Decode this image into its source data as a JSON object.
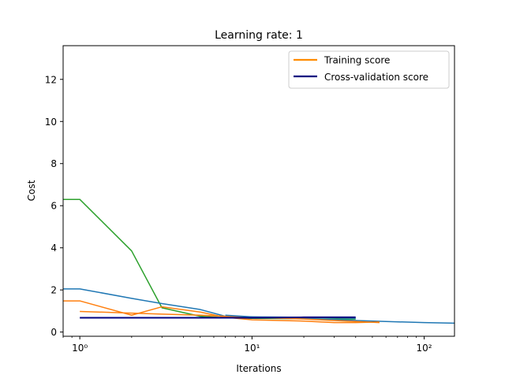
{
  "chart_data": {
    "type": "line",
    "title": "Learning rate: 1",
    "xlabel": "Iterations",
    "ylabel": "Cost",
    "xscale": "log",
    "xlim": [
      0.8,
      150
    ],
    "ylim": [
      -0.2,
      13.6
    ],
    "grid": false,
    "legend_position": "top-right",
    "x_ticks": [
      {
        "value": 1,
        "label": "10⁰"
      },
      {
        "value": 10,
        "label": "10¹"
      },
      {
        "value": 100,
        "label": "10²"
      }
    ],
    "y_ticks": [
      {
        "value": 0,
        "label": "0"
      },
      {
        "value": 2,
        "label": "2"
      },
      {
        "value": 4,
        "label": "4"
      },
      {
        "value": 6,
        "label": "6"
      },
      {
        "value": 8,
        "label": "8"
      },
      {
        "value": 10,
        "label": "10"
      },
      {
        "value": 12,
        "label": "12"
      }
    ],
    "legend": [
      {
        "label": "Training score",
        "color": "#ff8c00"
      },
      {
        "label": "Cross-validation score",
        "color": "#000080"
      }
    ],
    "series": [
      {
        "color": "#2ca02c",
        "x": [
          0.8,
          1,
          2,
          3,
          5,
          7,
          10,
          20,
          30,
          40
        ],
        "y": [
          6.3,
          6.3,
          3.85,
          1.15,
          0.75,
          0.68,
          0.65,
          0.63,
          0.62,
          0.62
        ]
      },
      {
        "color": "#1f77b4",
        "x": [
          0.8,
          1,
          2,
          3,
          5,
          7,
          10,
          20,
          40,
          60,
          100,
          150
        ],
        "y": [
          2.05,
          2.05,
          1.6,
          1.35,
          1.07,
          0.75,
          0.72,
          0.65,
          0.55,
          0.5,
          0.45,
          0.42
        ]
      },
      {
        "color": "#ff7f0e",
        "x": [
          0.8,
          1,
          2,
          3,
          5,
          7,
          10,
          20,
          30,
          40,
          55
        ],
        "y": [
          1.48,
          1.48,
          0.8,
          1.2,
          0.95,
          0.7,
          0.58,
          0.52,
          0.45,
          0.45,
          0.48
        ]
      },
      {
        "color": "#ff7f0e",
        "x": [
          1,
          2,
          3,
          5,
          7,
          10,
          20,
          30,
          40,
          55
        ],
        "y": [
          0.98,
          0.9,
          0.85,
          0.8,
          0.75,
          0.7,
          0.62,
          0.55,
          0.5,
          0.45
        ]
      },
      {
        "color": "#1f77b4",
        "x": [
          7,
          10,
          20,
          40
        ],
        "y": [
          0.8,
          0.72,
          0.7,
          0.65
        ]
      },
      {
        "color": "#000080",
        "x": [
          1,
          2,
          3,
          5,
          7,
          10,
          20,
          30,
          40
        ],
        "y": [
          0.68,
          0.68,
          0.68,
          0.68,
          0.68,
          0.68,
          0.7,
          0.7,
          0.7
        ]
      }
    ]
  }
}
